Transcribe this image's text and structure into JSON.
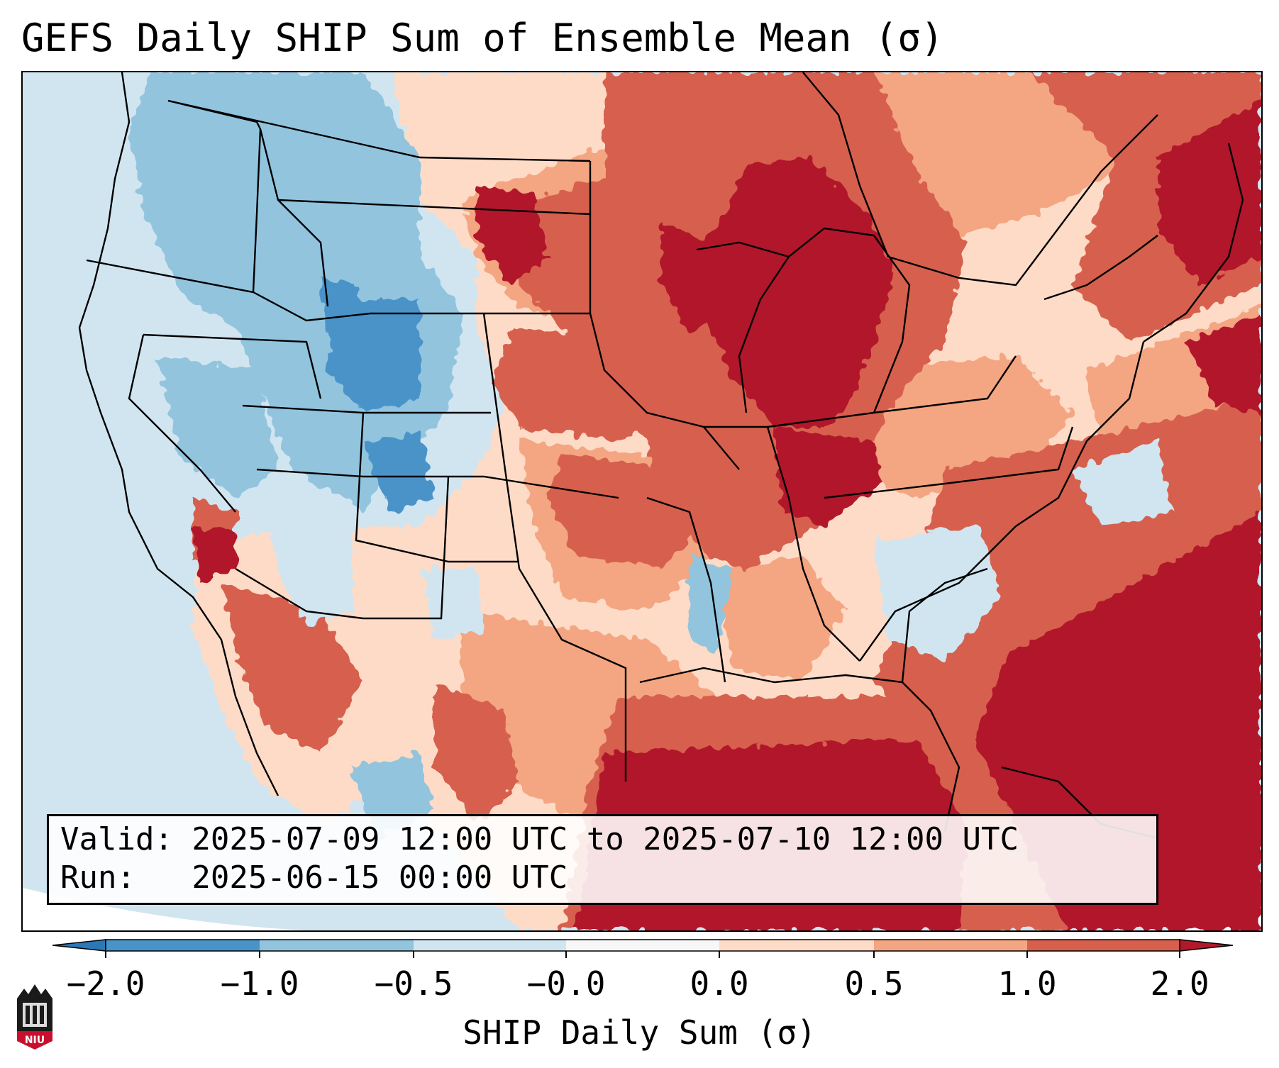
{
  "title": "GEFS Daily SHIP Sum of Ensemble Mean (σ)",
  "info": {
    "valid_line": "Valid: 2025-07-09 12:00 UTC to 2025-07-10 12:00 UTC",
    "run_line": "Run:   2025-06-15 00:00 UTC"
  },
  "colorbar": {
    "label": "SHIP Daily Sum (σ)",
    "ticks": [
      "−2.0",
      "−1.0",
      "−0.5",
      "−0.0",
      "0.0",
      "0.5",
      "1.0",
      "2.0"
    ],
    "bin_colors": [
      "#2c78b6",
      "#4a93c9",
      "#92c4de",
      "#d1e5f0",
      "#f7f7f7",
      "#fddbc7",
      "#f4a582",
      "#d6604d",
      "#b2182b"
    ],
    "extend": "both"
  },
  "logo": {
    "text": "NIU"
  },
  "colors": {
    "ocean_base": "#d1e5f0",
    "gulf": "#b2182b",
    "background": "#ffffff"
  }
}
